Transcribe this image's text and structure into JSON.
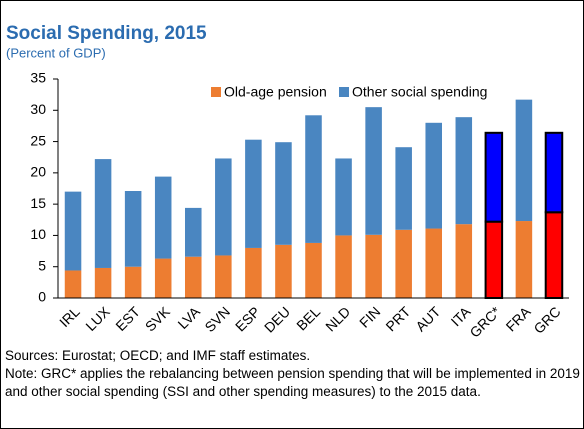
{
  "chart_data": {
    "type": "stacked_bar",
    "title": "Social Spending, 2015",
    "subtitle": "(Percent of GDP)",
    "categories": [
      "IRL",
      "LUX",
      "EST",
      "SVK",
      "LVA",
      "SVN",
      "ESP",
      "DEU",
      "BEL",
      "NLD",
      "FIN",
      "PRT",
      "AUT",
      "ITA",
      "GRC*",
      "FRA",
      "GRC"
    ],
    "series": [
      {
        "name": "Old-age pension",
        "color": "#ED7D31",
        "values": [
          4.4,
          4.8,
          5.0,
          6.3,
          6.6,
          6.8,
          8.0,
          8.5,
          8.8,
          10.0,
          10.1,
          10.9,
          11.1,
          11.8,
          12.2,
          12.3,
          13.7
        ],
        "colors": [
          "#ED7D31",
          "#ED7D31",
          "#ED7D31",
          "#ED7D31",
          "#ED7D31",
          "#ED7D31",
          "#ED7D31",
          "#ED7D31",
          "#ED7D31",
          "#ED7D31",
          "#ED7D31",
          "#ED7D31",
          "#ED7D31",
          "#ED7D31",
          "#FF0000",
          "#ED7D31",
          "#FF0000"
        ]
      },
      {
        "name": "Other social spending",
        "color": "#4A86C1",
        "values": [
          12.6,
          17.4,
          12.1,
          13.1,
          7.8,
          15.5,
          17.3,
          16.4,
          20.4,
          12.3,
          20.4,
          13.2,
          16.9,
          17.1,
          14.2,
          19.4,
          12.7
        ],
        "colors": [
          "#4A86C1",
          "#4A86C1",
          "#4A86C1",
          "#4A86C1",
          "#4A86C1",
          "#4A86C1",
          "#4A86C1",
          "#4A86C1",
          "#4A86C1",
          "#4A86C1",
          "#4A86C1",
          "#4A86C1",
          "#4A86C1",
          "#4A86C1",
          "#0000FF",
          "#4A86C1",
          "#0000FF"
        ]
      }
    ],
    "edge_colors": [
      null,
      null,
      null,
      null,
      null,
      null,
      null,
      null,
      null,
      null,
      null,
      null,
      null,
      null,
      "#000000",
      null,
      "#000000"
    ],
    "ylim": [
      0,
      35
    ],
    "yticks": [
      0,
      5,
      10,
      15,
      20,
      25,
      30,
      35
    ],
    "grid": false,
    "legend": "top",
    "sources": "Sources: Eurostat; OECD; and IMF staff estimates.",
    "note": "Note: GRC* applies the rebalancing between pension spending that will be implemented in 2019 and other social spending (SSI and other spending measures) to the 2015 data."
  }
}
